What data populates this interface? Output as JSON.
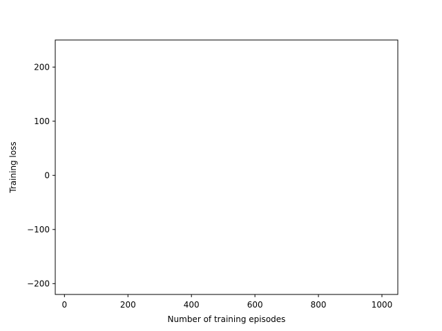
{
  "chart_data": {
    "type": "line",
    "title": "",
    "xlabel": "Number of training episodes",
    "ylabel": "Training loss",
    "xlim": [
      -29,
      1050
    ],
    "ylim": [
      -220,
      250
    ],
    "x_ticks": [
      0,
      200,
      400,
      600,
      800,
      1000
    ],
    "x_tick_labels": [
      "0",
      "200",
      "400",
      "600",
      "800",
      "1000"
    ],
    "y_ticks": [
      -200,
      -100,
      0,
      100,
      200
    ],
    "y_tick_labels": [
      "−200",
      "−100",
      "0",
      "100",
      "200"
    ],
    "series": [],
    "grid": false,
    "legend": "none"
  }
}
